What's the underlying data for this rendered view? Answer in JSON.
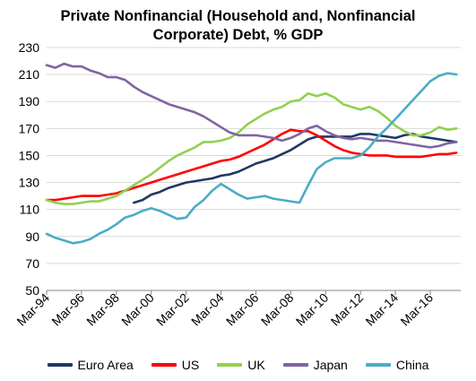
{
  "title": {
    "line1": "Private Nonfinancial (Household and, Nonfinancial",
    "line2": "Corporate) Debt,  % GDP"
  },
  "chart_data": {
    "type": "line",
    "title": "Private Nonfinancial (Household and, Nonfinancial Corporate) Debt,  % GDP",
    "xlabel": "",
    "ylabel": "",
    "ylim": [
      50,
      230
    ],
    "yticks": [
      50,
      70,
      90,
      110,
      130,
      150,
      170,
      190,
      210,
      230
    ],
    "xlim": [
      1994.0,
      2017.75
    ],
    "xticks": [
      {
        "x": 1994,
        "label": "Mar-94"
      },
      {
        "x": 1996,
        "label": "Mar-96"
      },
      {
        "x": 1998,
        "label": "Mar-98"
      },
      {
        "x": 2000,
        "label": "Mar-00"
      },
      {
        "x": 2002,
        "label": "Mar-02"
      },
      {
        "x": 2004,
        "label": "Mar-04"
      },
      {
        "x": 2006,
        "label": "Mar-06"
      },
      {
        "x": 2008,
        "label": "Mar-08"
      },
      {
        "x": 2010,
        "label": "Mar-10"
      },
      {
        "x": 2012,
        "label": "Mar-12"
      },
      {
        "x": 2014,
        "label": "Mar-14"
      },
      {
        "x": 2016,
        "label": "Mar-16"
      }
    ],
    "grid": true,
    "legend_position": "bottom",
    "series": [
      {
        "name": "Euro Area",
        "color": "#1f3864",
        "points": [
          [
            1999.0,
            115
          ],
          [
            1999.5,
            117
          ],
          [
            2000.0,
            121
          ],
          [
            2000.5,
            123
          ],
          [
            2001.0,
            126
          ],
          [
            2001.5,
            128
          ],
          [
            2002.0,
            130
          ],
          [
            2002.5,
            131
          ],
          [
            2003.0,
            132
          ],
          [
            2003.5,
            133
          ],
          [
            2004.0,
            135
          ],
          [
            2004.5,
            136
          ],
          [
            2005.0,
            138
          ],
          [
            2005.5,
            141
          ],
          [
            2006.0,
            144
          ],
          [
            2006.5,
            146
          ],
          [
            2007.0,
            148
          ],
          [
            2007.5,
            151
          ],
          [
            2008.0,
            154
          ],
          [
            2008.5,
            158
          ],
          [
            2009.0,
            162
          ],
          [
            2009.5,
            164
          ],
          [
            2010.0,
            164
          ],
          [
            2010.5,
            164
          ],
          [
            2011.0,
            164
          ],
          [
            2011.5,
            164
          ],
          [
            2012.0,
            166
          ],
          [
            2012.5,
            166
          ],
          [
            2013.0,
            165
          ],
          [
            2013.5,
            164
          ],
          [
            2014.0,
            163
          ],
          [
            2014.5,
            165
          ],
          [
            2015.0,
            166
          ],
          [
            2015.5,
            164
          ],
          [
            2016.0,
            163
          ],
          [
            2016.5,
            162
          ],
          [
            2017.0,
            161
          ],
          [
            2017.5,
            160
          ]
        ]
      },
      {
        "name": "US",
        "color": "#ff0000",
        "points": [
          [
            1994.0,
            117
          ],
          [
            1994.5,
            117
          ],
          [
            1995.0,
            118
          ],
          [
            1995.5,
            119
          ],
          [
            1996.0,
            120
          ],
          [
            1996.5,
            120
          ],
          [
            1997.0,
            120
          ],
          [
            1997.5,
            121
          ],
          [
            1998.0,
            122
          ],
          [
            1998.5,
            124
          ],
          [
            1999.0,
            126
          ],
          [
            1999.5,
            128
          ],
          [
            2000.0,
            130
          ],
          [
            2000.5,
            132
          ],
          [
            2001.0,
            134
          ],
          [
            2001.5,
            136
          ],
          [
            2002.0,
            138
          ],
          [
            2002.5,
            140
          ],
          [
            2003.0,
            142
          ],
          [
            2003.5,
            144
          ],
          [
            2004.0,
            146
          ],
          [
            2004.5,
            147
          ],
          [
            2005.0,
            149
          ],
          [
            2005.5,
            152
          ],
          [
            2006.0,
            155
          ],
          [
            2006.5,
            158
          ],
          [
            2007.0,
            162
          ],
          [
            2007.5,
            166
          ],
          [
            2008.0,
            169
          ],
          [
            2008.5,
            168
          ],
          [
            2009.0,
            168
          ],
          [
            2009.5,
            165
          ],
          [
            2010.0,
            161
          ],
          [
            2010.5,
            157
          ],
          [
            2011.0,
            154
          ],
          [
            2011.5,
            152
          ],
          [
            2012.0,
            151
          ],
          [
            2012.5,
            150
          ],
          [
            2013.0,
            150
          ],
          [
            2013.5,
            150
          ],
          [
            2014.0,
            149
          ],
          [
            2014.5,
            149
          ],
          [
            2015.0,
            149
          ],
          [
            2015.5,
            149
          ],
          [
            2016.0,
            150
          ],
          [
            2016.5,
            151
          ],
          [
            2017.0,
            151
          ],
          [
            2017.5,
            152
          ]
        ]
      },
      {
        "name": "UK",
        "color": "#92d050",
        "points": [
          [
            1994.0,
            117
          ],
          [
            1994.5,
            115
          ],
          [
            1995.0,
            114
          ],
          [
            1995.5,
            114
          ],
          [
            1996.0,
            115
          ],
          [
            1996.5,
            116
          ],
          [
            1997.0,
            116
          ],
          [
            1997.5,
            118
          ],
          [
            1998.0,
            120
          ],
          [
            1998.5,
            124
          ],
          [
            1999.0,
            128
          ],
          [
            1999.5,
            132
          ],
          [
            2000.0,
            136
          ],
          [
            2000.5,
            141
          ],
          [
            2001.0,
            146
          ],
          [
            2001.5,
            150
          ],
          [
            2002.0,
            153
          ],
          [
            2002.5,
            156
          ],
          [
            2003.0,
            160
          ],
          [
            2003.5,
            160
          ],
          [
            2004.0,
            161
          ],
          [
            2004.5,
            163
          ],
          [
            2005.0,
            167
          ],
          [
            2005.5,
            173
          ],
          [
            2006.0,
            177
          ],
          [
            2006.5,
            181
          ],
          [
            2007.0,
            184
          ],
          [
            2007.5,
            186
          ],
          [
            2008.0,
            190
          ],
          [
            2008.5,
            191
          ],
          [
            2009.0,
            196
          ],
          [
            2009.5,
            194
          ],
          [
            2010.0,
            196
          ],
          [
            2010.5,
            193
          ],
          [
            2011.0,
            188
          ],
          [
            2011.5,
            186
          ],
          [
            2012.0,
            184
          ],
          [
            2012.5,
            186
          ],
          [
            2013.0,
            183
          ],
          [
            2013.5,
            178
          ],
          [
            2014.0,
            172
          ],
          [
            2014.5,
            168
          ],
          [
            2015.0,
            165
          ],
          [
            2015.5,
            165
          ],
          [
            2016.0,
            167
          ],
          [
            2016.5,
            171
          ],
          [
            2017.0,
            169
          ],
          [
            2017.5,
            170
          ]
        ]
      },
      {
        "name": "Japan",
        "color": "#8064a2",
        "points": [
          [
            1994.0,
            217
          ],
          [
            1994.5,
            215
          ],
          [
            1995.0,
            218
          ],
          [
            1995.5,
            216
          ],
          [
            1996.0,
            216
          ],
          [
            1996.5,
            213
          ],
          [
            1997.0,
            211
          ],
          [
            1997.5,
            208
          ],
          [
            1998.0,
            208
          ],
          [
            1998.5,
            206
          ],
          [
            1999.0,
            201
          ],
          [
            1999.5,
            197
          ],
          [
            2000.0,
            194
          ],
          [
            2000.5,
            191
          ],
          [
            2001.0,
            188
          ],
          [
            2001.5,
            186
          ],
          [
            2002.0,
            184
          ],
          [
            2002.5,
            182
          ],
          [
            2003.0,
            179
          ],
          [
            2003.5,
            175
          ],
          [
            2004.0,
            171
          ],
          [
            2004.5,
            167
          ],
          [
            2005.0,
            165
          ],
          [
            2005.5,
            165
          ],
          [
            2006.0,
            165
          ],
          [
            2006.5,
            164
          ],
          [
            2007.0,
            163
          ],
          [
            2007.5,
            161
          ],
          [
            2008.0,
            163
          ],
          [
            2008.5,
            166
          ],
          [
            2009.0,
            170
          ],
          [
            2009.5,
            172
          ],
          [
            2010.0,
            168
          ],
          [
            2010.5,
            165
          ],
          [
            2011.0,
            163
          ],
          [
            2011.5,
            162
          ],
          [
            2012.0,
            163
          ],
          [
            2012.5,
            162
          ],
          [
            2013.0,
            161
          ],
          [
            2013.5,
            161
          ],
          [
            2014.0,
            160
          ],
          [
            2014.5,
            159
          ],
          [
            2015.0,
            158
          ],
          [
            2015.5,
            157
          ],
          [
            2016.0,
            156
          ],
          [
            2016.5,
            157
          ],
          [
            2017.0,
            159
          ],
          [
            2017.5,
            160
          ]
        ]
      },
      {
        "name": "China",
        "color": "#4bacc6",
        "points": [
          [
            1994.0,
            92
          ],
          [
            1994.5,
            89
          ],
          [
            1995.0,
            87
          ],
          [
            1995.5,
            85
          ],
          [
            1996.0,
            86
          ],
          [
            1996.5,
            88
          ],
          [
            1997.0,
            92
          ],
          [
            1997.5,
            95
          ],
          [
            1998.0,
            99
          ],
          [
            1998.5,
            104
          ],
          [
            1999.0,
            106
          ],
          [
            1999.5,
            109
          ],
          [
            2000.0,
            111
          ],
          [
            2000.5,
            109
          ],
          [
            2001.0,
            106
          ],
          [
            2001.5,
            103
          ],
          [
            2002.0,
            104
          ],
          [
            2002.5,
            112
          ],
          [
            2003.0,
            117
          ],
          [
            2003.5,
            124
          ],
          [
            2004.0,
            129
          ],
          [
            2004.5,
            125
          ],
          [
            2005.0,
            121
          ],
          [
            2005.5,
            118
          ],
          [
            2006.0,
            119
          ],
          [
            2006.5,
            120
          ],
          [
            2007.0,
            118
          ],
          [
            2007.5,
            117
          ],
          [
            2008.0,
            116
          ],
          [
            2008.5,
            115
          ],
          [
            2009.0,
            128
          ],
          [
            2009.5,
            140
          ],
          [
            2010.0,
            145
          ],
          [
            2010.5,
            148
          ],
          [
            2011.0,
            148
          ],
          [
            2011.5,
            148
          ],
          [
            2012.0,
            150
          ],
          [
            2012.5,
            156
          ],
          [
            2013.0,
            164
          ],
          [
            2013.5,
            170
          ],
          [
            2014.0,
            177
          ],
          [
            2014.5,
            184
          ],
          [
            2015.0,
            191
          ],
          [
            2015.5,
            198
          ],
          [
            2016.0,
            205
          ],
          [
            2016.5,
            209
          ],
          [
            2017.0,
            211
          ],
          [
            2017.5,
            210
          ]
        ]
      }
    ]
  }
}
